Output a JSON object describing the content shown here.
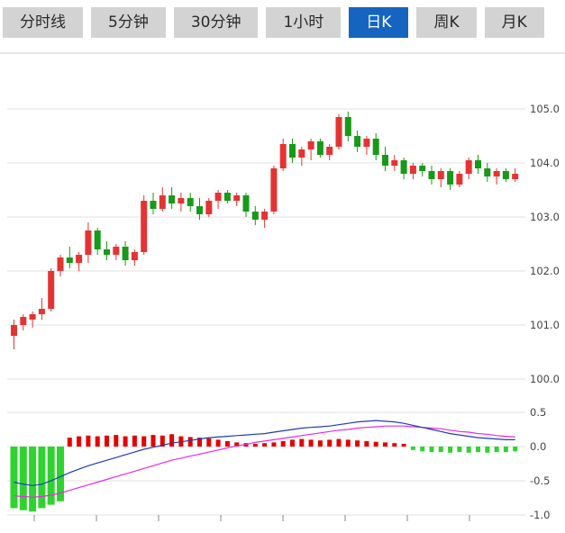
{
  "tabbar": {
    "tabs": [
      {
        "label": "分时线",
        "name": "tab-time-line",
        "active": false
      },
      {
        "label": "5分钟",
        "name": "tab-5min",
        "active": false
      },
      {
        "label": "30分钟",
        "name": "tab-30min",
        "active": false
      },
      {
        "label": "1小时",
        "name": "tab-1hour",
        "active": false
      },
      {
        "label": "日K",
        "name": "tab-daily-k",
        "active": true
      },
      {
        "label": "周K",
        "name": "tab-weekly-k",
        "active": false
      },
      {
        "label": "月K",
        "name": "tab-monthly-k",
        "active": false
      }
    ],
    "inactive_bg": "#d3d3d3",
    "active_bg": "#1565c0"
  },
  "colors": {
    "up": "#e53333",
    "down": "#179a17",
    "hist_up": "#e60000",
    "hist_down": "#2fd32f",
    "dif_line": "#1f3db0",
    "dea_line": "#e828e8",
    "grid": "#e2e2e2",
    "axis_text": "#444444",
    "tick_mark": "#888888"
  },
  "chart_data": {
    "type": "candlestick+macd",
    "title": "",
    "legend_position": "none",
    "grid": true,
    "price_axis_ticks": [
      "105.0",
      "104.0",
      "103.0",
      "102.0",
      "101.0",
      "100.0"
    ],
    "price_axis_range": [
      99.8,
      106.0
    ],
    "macd_axis_ticks": [
      "0.5",
      "0.0",
      "-0.5",
      "-1.0"
    ],
    "macd_axis_range": [
      -1.0,
      0.6
    ],
    "candles": [
      [
        100.8,
        101.1,
        100.55,
        101.0
      ],
      [
        101.0,
        101.2,
        100.9,
        101.15
      ],
      [
        101.1,
        101.25,
        100.95,
        101.2
      ],
      [
        101.2,
        101.5,
        101.1,
        101.3
      ],
      [
        101.3,
        102.05,
        101.25,
        102.0
      ],
      [
        102.0,
        102.3,
        101.9,
        102.25
      ],
      [
        102.25,
        102.45,
        102.05,
        102.15
      ],
      [
        102.15,
        102.35,
        102.0,
        102.3
      ],
      [
        102.3,
        102.9,
        102.15,
        102.75
      ],
      [
        102.75,
        102.8,
        102.3,
        102.4
      ],
      [
        102.4,
        102.55,
        102.2,
        102.3
      ],
      [
        102.3,
        102.5,
        102.2,
        102.45
      ],
      [
        102.45,
        102.55,
        102.1,
        102.2
      ],
      [
        102.2,
        102.4,
        102.1,
        102.35
      ],
      [
        102.35,
        103.4,
        102.3,
        103.3
      ],
      [
        103.3,
        103.45,
        103.05,
        103.15
      ],
      [
        103.15,
        103.55,
        103.1,
        103.4
      ],
      [
        103.4,
        103.55,
        103.15,
        103.25
      ],
      [
        103.25,
        103.45,
        103.1,
        103.35
      ],
      [
        103.35,
        103.45,
        103.1,
        103.2
      ],
      [
        103.2,
        103.35,
        102.95,
        103.05
      ],
      [
        103.05,
        103.35,
        103.0,
        103.3
      ],
      [
        103.3,
        103.5,
        103.15,
        103.45
      ],
      [
        103.45,
        103.5,
        103.25,
        103.3
      ],
      [
        103.3,
        103.45,
        103.2,
        103.4
      ],
      [
        103.4,
        103.45,
        103.0,
        103.1
      ],
      [
        103.1,
        103.2,
        102.85,
        102.95
      ],
      [
        102.95,
        103.15,
        102.8,
        103.1
      ],
      [
        103.1,
        103.95,
        103.05,
        103.9
      ],
      [
        103.9,
        104.45,
        103.85,
        104.35
      ],
      [
        104.35,
        104.45,
        104.0,
        104.1
      ],
      [
        104.1,
        104.3,
        103.95,
        104.25
      ],
      [
        104.25,
        104.45,
        104.05,
        104.4
      ],
      [
        104.4,
        104.45,
        104.1,
        104.15
      ],
      [
        104.15,
        104.35,
        104.05,
        104.3
      ],
      [
        104.3,
        104.9,
        104.25,
        104.85
      ],
      [
        104.85,
        104.95,
        104.4,
        104.5
      ],
      [
        104.5,
        104.6,
        104.2,
        104.3
      ],
      [
        104.3,
        104.5,
        104.15,
        104.45
      ],
      [
        104.45,
        104.55,
        104.05,
        104.15
      ],
      [
        104.15,
        104.3,
        103.85,
        103.95
      ],
      [
        103.95,
        104.15,
        103.85,
        104.05
      ],
      [
        104.05,
        104.1,
        103.7,
        103.8
      ],
      [
        103.8,
        104.0,
        103.7,
        103.95
      ],
      [
        103.95,
        104.0,
        103.75,
        103.85
      ],
      [
        103.85,
        103.95,
        103.6,
        103.7
      ],
      [
        103.7,
        103.9,
        103.55,
        103.85
      ],
      [
        103.85,
        103.9,
        103.5,
        103.6
      ],
      [
        103.6,
        103.85,
        103.55,
        103.8
      ],
      [
        103.8,
        104.1,
        103.7,
        104.05
      ],
      [
        104.05,
        104.15,
        103.8,
        103.9
      ],
      [
        103.9,
        104.0,
        103.65,
        103.75
      ],
      [
        103.75,
        103.9,
        103.6,
        103.85
      ],
      [
        103.85,
        103.9,
        103.65,
        103.7
      ],
      [
        103.7,
        103.9,
        103.65,
        103.8
      ]
    ],
    "macd": {
      "hist": [
        -0.9,
        -0.93,
        -0.95,
        -0.9,
        -0.85,
        -0.8,
        0.13,
        0.15,
        0.16,
        0.15,
        0.16,
        0.17,
        0.15,
        0.16,
        0.15,
        0.17,
        0.16,
        0.18,
        0.15,
        0.14,
        0.13,
        0.12,
        0.1,
        0.08,
        0.06,
        0.05,
        0.04,
        0.05,
        0.06,
        0.08,
        0.1,
        0.11,
        0.1,
        0.09,
        0.1,
        0.11,
        0.1,
        0.09,
        0.08,
        0.07,
        0.06,
        0.05,
        0.04,
        -0.05,
        -0.07,
        -0.08,
        -0.08,
        -0.09,
        -0.08,
        -0.09,
        -0.08,
        -0.09,
        -0.08,
        -0.08,
        -0.07
      ],
      "dif": [
        -0.52,
        -0.55,
        -0.57,
        -0.55,
        -0.5,
        -0.44,
        -0.38,
        -0.33,
        -0.28,
        -0.24,
        -0.2,
        -0.16,
        -0.12,
        -0.08,
        -0.04,
        -0.01,
        0.02,
        0.05,
        0.07,
        0.09,
        0.11,
        0.13,
        0.14,
        0.15,
        0.16,
        0.17,
        0.18,
        0.19,
        0.21,
        0.23,
        0.25,
        0.27,
        0.28,
        0.29,
        0.3,
        0.32,
        0.34,
        0.36,
        0.37,
        0.38,
        0.37,
        0.36,
        0.34,
        0.31,
        0.28,
        0.25,
        0.22,
        0.19,
        0.17,
        0.15,
        0.13,
        0.12,
        0.11,
        0.1,
        0.1
      ],
      "dea": [
        -0.72,
        -0.73,
        -0.74,
        -0.73,
        -0.71,
        -0.68,
        -0.64,
        -0.6,
        -0.56,
        -0.52,
        -0.48,
        -0.44,
        -0.4,
        -0.36,
        -0.32,
        -0.28,
        -0.24,
        -0.2,
        -0.17,
        -0.14,
        -0.11,
        -0.08,
        -0.05,
        -0.02,
        0.01,
        0.03,
        0.06,
        0.08,
        0.1,
        0.12,
        0.14,
        0.16,
        0.18,
        0.2,
        0.22,
        0.24,
        0.25,
        0.27,
        0.28,
        0.29,
        0.3,
        0.3,
        0.3,
        0.29,
        0.28,
        0.27,
        0.26,
        0.24,
        0.22,
        0.21,
        0.19,
        0.18,
        0.16,
        0.15,
        0.14
      ]
    }
  }
}
